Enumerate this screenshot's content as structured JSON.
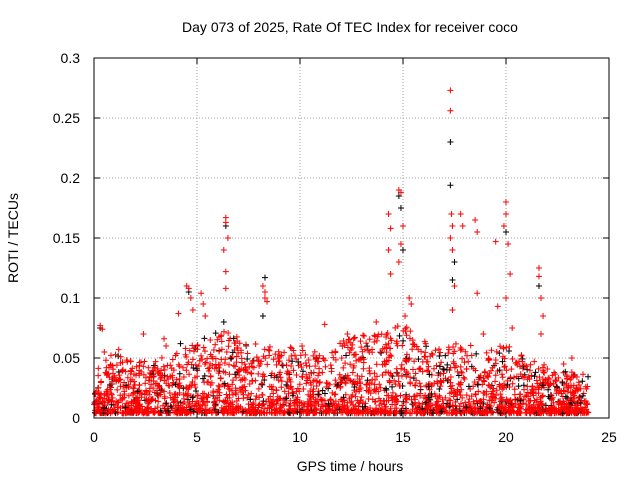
{
  "chart_data": {
    "type": "scatter",
    "title": "Day 073 of 2025, Rate Of TEC Index for receiver coco",
    "xlabel": "GPS time / hours",
    "ylabel": "ROTI / TECUs",
    "xlim": [
      0,
      25
    ],
    "ylim": [
      0,
      0.3
    ],
    "xticks": [
      0,
      5,
      10,
      15,
      20,
      25
    ],
    "xtick_labels": [
      "0",
      "5",
      "10",
      "15",
      "20",
      "25"
    ],
    "yticks": [
      0,
      0.05,
      0.1,
      0.15,
      0.2,
      0.25,
      0.3
    ],
    "ytick_labels": [
      "0",
      "0.05",
      "0.1",
      "0.15",
      "0.2",
      "0.25",
      "0.3"
    ],
    "grid": true,
    "legend": "none",
    "series": [
      {
        "name": "black",
        "color": "#000000",
        "points": [
          [
            0.3,
            0.075
          ],
          [
            4.6,
            0.105
          ],
          [
            6.4,
            0.16
          ],
          [
            8.3,
            0.117
          ],
          [
            8.2,
            0.085
          ],
          [
            14.8,
            0.185
          ],
          [
            14.9,
            0.175
          ],
          [
            17.3,
            0.23
          ],
          [
            17.3,
            0.194
          ],
          [
            17.5,
            0.13
          ],
          [
            17.4,
            0.115
          ],
          [
            20.0,
            0.155
          ],
          [
            21.6,
            0.11
          ],
          [
            6.3,
            0.08
          ],
          [
            15.0,
            0.14
          ],
          [
            4.2,
            0.062
          ]
        ]
      },
      {
        "name": "red",
        "color": "#ff0000",
        "envelope_hourly_max": [
          0.04,
          0.05,
          0.045,
          0.045,
          0.05,
          0.06,
          0.07,
          0.065,
          0.06,
          0.055,
          0.055,
          0.05,
          0.06,
          0.065,
          0.07,
          0.075,
          0.06,
          0.055,
          0.06,
          0.05,
          0.06,
          0.045,
          0.04,
          0.035,
          0.035
        ],
        "points": [
          [
            0.3,
            0.077
          ],
          [
            0.4,
            0.074
          ],
          [
            0.5,
            0.055
          ],
          [
            1.2,
            0.057
          ],
          [
            2.4,
            0.07
          ],
          [
            3.4,
            0.066
          ],
          [
            3.5,
            0.06
          ],
          [
            4.1,
            0.087
          ],
          [
            4.5,
            0.11
          ],
          [
            4.6,
            0.108
          ],
          [
            4.7,
            0.1
          ],
          [
            4.8,
            0.09
          ],
          [
            5.2,
            0.104
          ],
          [
            5.3,
            0.095
          ],
          [
            5.4,
            0.085
          ],
          [
            6.4,
            0.167
          ],
          [
            6.4,
            0.163
          ],
          [
            6.5,
            0.15
          ],
          [
            6.3,
            0.14
          ],
          [
            6.4,
            0.122
          ],
          [
            6.4,
            0.108
          ],
          [
            8.2,
            0.11
          ],
          [
            8.3,
            0.105
          ],
          [
            8.3,
            0.1
          ],
          [
            8.4,
            0.097
          ],
          [
            11.2,
            0.078
          ],
          [
            12.3,
            0.07
          ],
          [
            13.7,
            0.08
          ],
          [
            14.3,
            0.17
          ],
          [
            14.4,
            0.158
          ],
          [
            14.3,
            0.14
          ],
          [
            14.4,
            0.12
          ],
          [
            14.8,
            0.19
          ],
          [
            14.9,
            0.188
          ],
          [
            15.0,
            0.16
          ],
          [
            14.9,
            0.145
          ],
          [
            14.8,
            0.13
          ],
          [
            15.3,
            0.1
          ],
          [
            15.4,
            0.095
          ],
          [
            15.1,
            0.085
          ],
          [
            17.3,
            0.273
          ],
          [
            17.3,
            0.256
          ],
          [
            17.35,
            0.17
          ],
          [
            17.4,
            0.16
          ],
          [
            17.3,
            0.15
          ],
          [
            17.4,
            0.14
          ],
          [
            17.5,
            0.11
          ],
          [
            17.4,
            0.09
          ],
          [
            17.8,
            0.17
          ],
          [
            17.9,
            0.16
          ],
          [
            18.5,
            0.165
          ],
          [
            18.6,
            0.155
          ],
          [
            18.6,
            0.104
          ],
          [
            19.5,
            0.147
          ],
          [
            19.6,
            0.093
          ],
          [
            20.0,
            0.18
          ],
          [
            20.0,
            0.17
          ],
          [
            19.9,
            0.16
          ],
          [
            20.1,
            0.145
          ],
          [
            20.2,
            0.12
          ],
          [
            20.0,
            0.1
          ],
          [
            20.3,
            0.075
          ],
          [
            21.6,
            0.125
          ],
          [
            21.6,
            0.118
          ],
          [
            21.7,
            0.1
          ],
          [
            21.8,
            0.085
          ],
          [
            21.7,
            0.07
          ],
          [
            23.2,
            0.05
          ],
          [
            10.1,
            0.06
          ],
          [
            9.6,
            0.058
          ],
          [
            16.1,
            0.062
          ],
          [
            18.9,
            0.07
          ],
          [
            22.8,
            0.045
          ]
        ]
      }
    ]
  }
}
